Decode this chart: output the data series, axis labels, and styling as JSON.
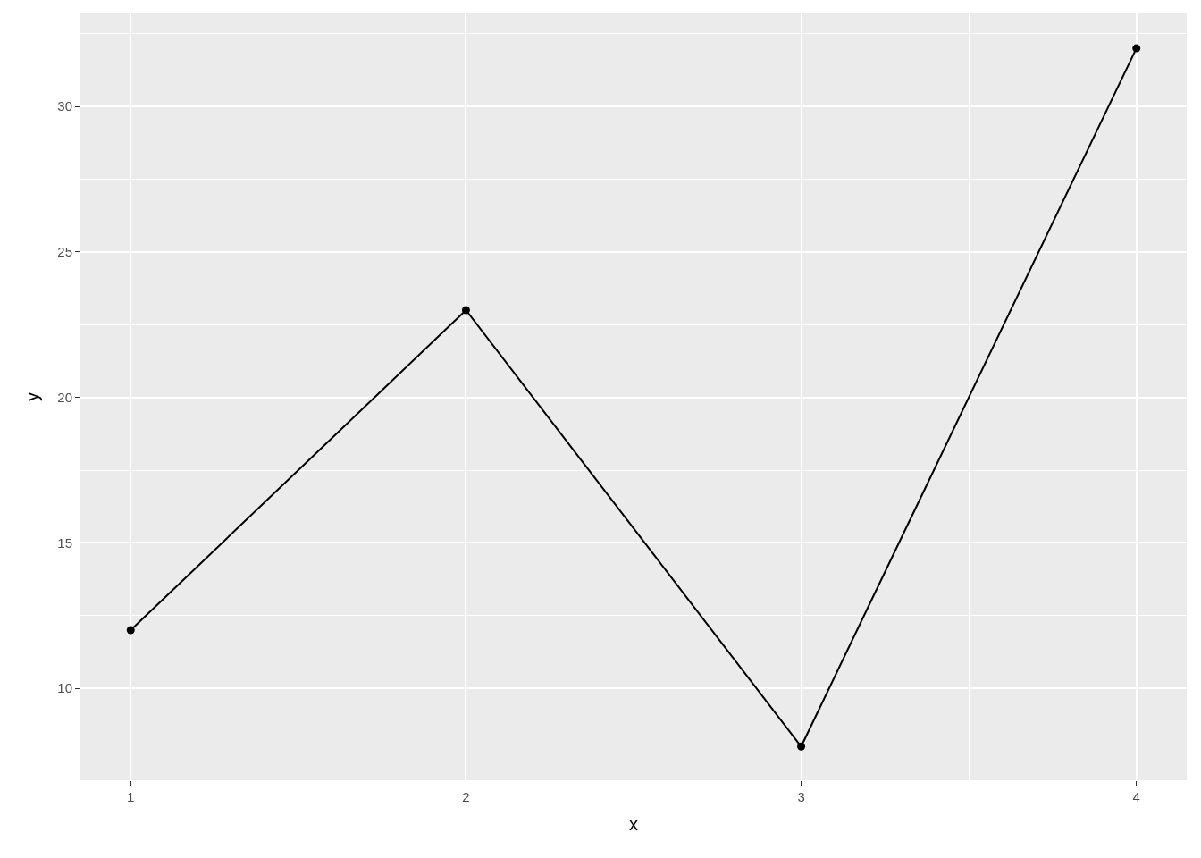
{
  "chart_data": {
    "type": "line",
    "xlabel": "x",
    "ylabel": "y",
    "x": [
      1,
      2,
      3,
      4
    ],
    "series": [
      {
        "color": "#000000",
        "values": [
          12,
          23,
          8,
          32
        ]
      }
    ],
    "xlim": [
      0.85,
      4.15
    ],
    "ylim": [
      6.84,
      33.2
    ],
    "xticks": [
      1,
      2,
      3,
      4
    ],
    "yticks": [
      10,
      15,
      20,
      25,
      30
    ],
    "grid": true,
    "marker": "circle",
    "line_style": "solid"
  }
}
